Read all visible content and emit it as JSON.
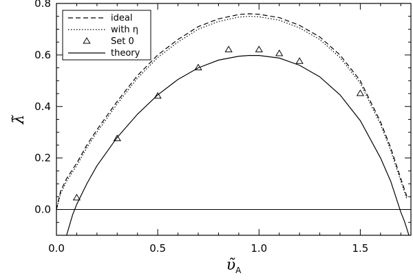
{
  "chart_data": {
    "type": "line",
    "title": "",
    "xlabel": "υ̃",
    "xlabel_sub": "A",
    "ylabel": "λ̃",
    "xlim": [
      0.0,
      1.75
    ],
    "ylim": [
      -0.1,
      0.8
    ],
    "x_ticks": [
      0.0,
      0.5,
      1.0,
      1.5
    ],
    "x_tick_labels": [
      "0.0",
      "0.5",
      "1.0",
      "1.5"
    ],
    "y_ticks": [
      0.0,
      0.2,
      0.4,
      0.6,
      0.8
    ],
    "y_tick_labels": [
      "0.0",
      "0.2",
      "0.4",
      "0.6",
      "0.8"
    ],
    "grid": false,
    "legend_position": "top-left",
    "zero_line": 0.0,
    "series": [
      {
        "name": "ideal",
        "style": "dashed",
        "x": [
          0.0,
          0.02,
          0.05,
          0.1,
          0.15,
          0.2,
          0.3,
          0.4,
          0.5,
          0.6,
          0.7,
          0.8,
          0.9,
          0.95,
          1.0,
          1.1,
          1.2,
          1.3,
          1.4,
          1.5,
          1.6,
          1.65,
          1.7,
          1.73
        ],
        "y": [
          0.0,
          0.07,
          0.12,
          0.18,
          0.25,
          0.31,
          0.42,
          0.52,
          0.6,
          0.66,
          0.71,
          0.74,
          0.757,
          0.76,
          0.758,
          0.745,
          0.715,
          0.67,
          0.6,
          0.5,
          0.34,
          0.24,
          0.12,
          0.05
        ]
      },
      {
        "name": "with η",
        "style": "dotted",
        "x": [
          0.0,
          0.02,
          0.05,
          0.1,
          0.15,
          0.2,
          0.3,
          0.4,
          0.5,
          0.6,
          0.7,
          0.8,
          0.9,
          0.95,
          1.0,
          1.1,
          1.2,
          1.3,
          1.4,
          1.5,
          1.6,
          1.65,
          1.7,
          1.73
        ],
        "y": [
          0.0,
          0.06,
          0.11,
          0.17,
          0.24,
          0.3,
          0.41,
          0.51,
          0.59,
          0.65,
          0.7,
          0.73,
          0.747,
          0.75,
          0.748,
          0.735,
          0.705,
          0.66,
          0.59,
          0.49,
          0.33,
          0.23,
          0.11,
          0.04
        ]
      },
      {
        "name": "Set 0",
        "style": "markers",
        "marker": "triangle",
        "x": [
          0.1,
          0.3,
          0.5,
          0.7,
          0.85,
          1.0,
          1.1,
          1.2,
          1.5
        ],
        "y": [
          0.045,
          0.275,
          0.44,
          0.55,
          0.62,
          0.62,
          0.605,
          0.575,
          0.45
        ]
      },
      {
        "name": "theory",
        "style": "solid",
        "x": [
          0.05,
          0.08,
          0.1,
          0.15,
          0.2,
          0.3,
          0.4,
          0.5,
          0.6,
          0.7,
          0.8,
          0.9,
          0.95,
          1.0,
          1.1,
          1.2,
          1.3,
          1.4,
          1.5,
          1.6,
          1.65,
          1.7,
          1.72,
          1.74
        ],
        "y": [
          -0.1,
          -0.02,
          0.02,
          0.1,
          0.17,
          0.28,
          0.37,
          0.445,
          0.505,
          0.55,
          0.58,
          0.595,
          0.598,
          0.598,
          0.588,
          0.56,
          0.515,
          0.445,
          0.345,
          0.2,
          0.11,
          -0.01,
          -0.05,
          -0.1
        ]
      }
    ]
  }
}
